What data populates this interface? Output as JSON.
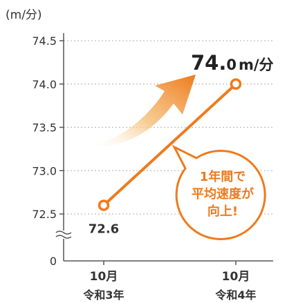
{
  "chart_data": {
    "type": "line",
    "unit_label": "(m/分)",
    "ylim": [
      72.5,
      74.5
    ],
    "y_ticks": [
      "74.5",
      "74.0",
      "73.5",
      "73.0",
      "72.5"
    ],
    "zero_label": "0",
    "axis_break": true,
    "grid": true,
    "categories": [
      {
        "month": "10月",
        "year": "令和3年"
      },
      {
        "month": "10月",
        "year": "令和4年"
      }
    ],
    "series": [
      {
        "values": [
          72.6,
          74.0
        ],
        "color": "#ee7a1c"
      }
    ],
    "data_labels": {
      "start": "72.6",
      "end_big": "74.",
      "end_small": "0",
      "end_unit": "m/分"
    },
    "callout": {
      "lines": [
        "1年間で",
        "平均速度が",
        "向上!"
      ],
      "text_color": "#ee7a1c",
      "border_color": "#ee7a1c"
    },
    "arrow_color": "#ee7a1c"
  }
}
